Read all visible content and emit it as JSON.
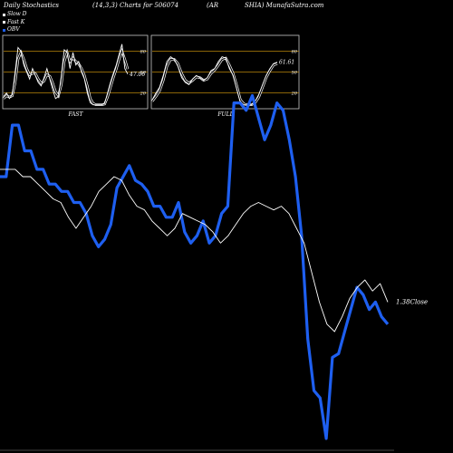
{
  "header": {
    "title": "Daily Stochastics",
    "params": "(14,3,3) Charts for 506074",
    "symbol_a": "(AR",
    "symbol_b": "SHIA) MunafaSutra.com"
  },
  "legend": [
    {
      "label": "Slow  D",
      "color": "#ffffff"
    },
    {
      "label": "Fast K",
      "color": "#ffffff"
    },
    {
      "label": "OBV",
      "color": "#1e5ff0"
    }
  ],
  "colors": {
    "obv": "#1e5ff0",
    "price": "#ffffff",
    "levels": "#b8860b",
    "frame": "#c8c8c8"
  },
  "chart_data": [
    {
      "type": "line",
      "title": "FAST",
      "ylim": [
        0,
        100
      ],
      "levels": [
        20,
        50,
        80
      ],
      "level_labels": [
        "80",
        "50",
        "20"
      ],
      "value_label": "47.06",
      "series": [
        {
          "name": "Fast K",
          "values": [
            15,
            20,
            12,
            18,
            50,
            85,
            80,
            60,
            50,
            40,
            55,
            45,
            35,
            30,
            42,
            55,
            40,
            25,
            12,
            15,
            45,
            82,
            78,
            55,
            78,
            60,
            65,
            50,
            40,
            20,
            6,
            3,
            3,
            3,
            3,
            5,
            20,
            35,
            48,
            60,
            75,
            90,
            55,
            47
          ]
        },
        {
          "name": "Slow  D",
          "values": [
            12,
            16,
            14,
            16,
            35,
            68,
            78,
            68,
            55,
            46,
            48,
            48,
            40,
            34,
            37,
            46,
            44,
            34,
            22,
            16,
            32,
            65,
            78,
            65,
            70,
            65,
            62,
            55,
            45,
            30,
            12,
            5,
            3,
            3,
            3,
            4,
            14,
            28,
            42,
            54,
            68,
            80,
            68,
            54
          ]
        }
      ]
    },
    {
      "type": "line",
      "title": "FULL",
      "ylim": [
        0,
        100
      ],
      "levels": [
        20,
        50,
        80
      ],
      "level_labels": [
        "80",
        "50",
        "20"
      ],
      "value_label": "61.61",
      "series": [
        {
          "name": "Fast K",
          "values": [
            10,
            20,
            28,
            45,
            65,
            72,
            68,
            58,
            42,
            35,
            32,
            40,
            45,
            42,
            38,
            42,
            52,
            55,
            65,
            72,
            70,
            55,
            45,
            25,
            6,
            3,
            3,
            3,
            8,
            18,
            32,
            45,
            55,
            62,
            64
          ]
        },
        {
          "name": "Slow  D",
          "values": [
            8,
            15,
            23,
            38,
            58,
            68,
            68,
            62,
            48,
            38,
            34,
            38,
            43,
            42,
            38,
            40,
            48,
            53,
            60,
            68,
            70,
            60,
            48,
            30,
            10,
            4,
            3,
            3,
            6,
            14,
            28,
            42,
            52,
            60,
            62
          ]
        }
      ]
    },
    {
      "type": "line",
      "value_label": "1.38",
      "value_suffix": "Close",
      "series": [
        {
          "name": "OBV",
          "values": [
            28,
            28,
            42,
            42,
            35,
            35,
            30,
            30,
            26,
            26,
            24,
            24,
            21,
            21,
            18,
            12,
            9,
            11,
            15,
            25,
            28,
            31,
            27,
            26,
            24,
            20,
            20,
            17,
            17,
            21,
            13,
            10,
            12,
            16,
            10,
            12,
            18,
            20,
            48,
            48,
            46,
            50,
            44,
            38,
            42,
            48,
            46,
            38,
            28,
            12,
            -16,
            -30,
            -32,
            -43,
            -21,
            -20,
            -14,
            -8,
            -2,
            -4,
            -8,
            -6,
            -10,
            -12
          ]
        },
        {
          "name": "Close",
          "values": [
            30,
            30,
            30,
            28,
            28,
            26,
            24,
            22,
            21,
            17,
            14,
            17,
            20,
            24,
            26,
            28,
            27,
            23,
            20,
            19,
            16,
            14,
            12,
            14,
            18,
            17,
            16,
            15,
            13,
            10,
            12,
            15,
            18,
            20,
            21,
            20,
            19,
            20,
            18,
            14,
            10,
            2,
            -6,
            -12,
            -14,
            -10,
            -5,
            -2,
            0,
            -3,
            -1,
            -6
          ]
        }
      ]
    }
  ]
}
